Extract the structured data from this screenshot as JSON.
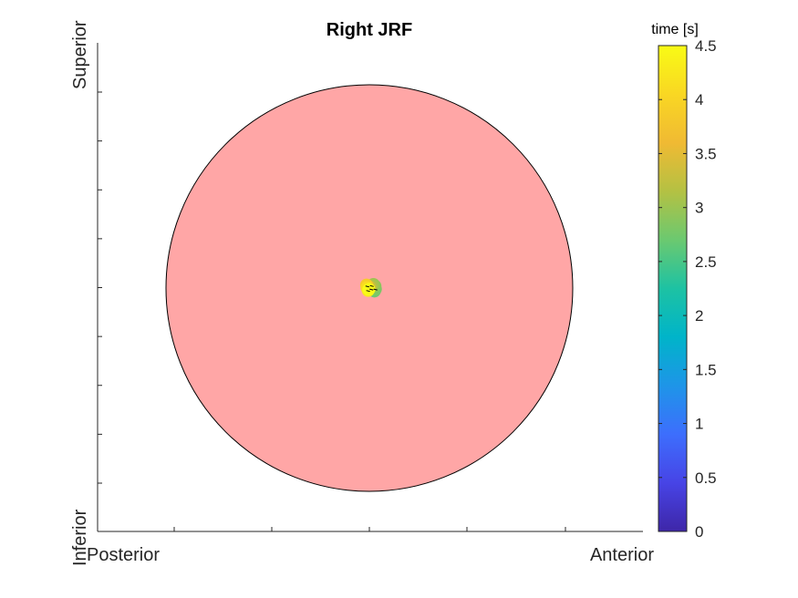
{
  "chart_data": {
    "type": "scatter",
    "title": "Right JRF",
    "x_axis": {
      "left_label": "Posterior",
      "right_label": "Anterior",
      "tick_count": 5
    },
    "y_axis": {
      "top_label": "Superior",
      "bottom_label": "Inferior",
      "tick_count": 9
    },
    "background_disk": {
      "fill": "#FFA6A6",
      "stroke": "#000000"
    },
    "colorbar": {
      "label": "time [s]",
      "range": [
        0,
        4.5
      ],
      "ticks": [
        "0",
        "0.5",
        "1",
        "1.5",
        "2",
        "2.5",
        "3",
        "3.5",
        "4",
        "4.5"
      ],
      "colormap": [
        "#3E26A8",
        "#4744E6",
        "#3D6EFD",
        "#1E95E8",
        "#00B4C9",
        "#1DC2A3",
        "#6BC970",
        "#B4C143",
        "#F0BA33",
        "#F9D723",
        "#F9FB15"
      ]
    },
    "points": [
      {
        "t": 2.4,
        "x": 0.01,
        "y": -0.005
      },
      {
        "t": 2.6,
        "x": 0.016,
        "y": -0.01
      },
      {
        "t": 2.7,
        "x": 0.025,
        "y": -0.015
      },
      {
        "t": 2.8,
        "x": 0.03,
        "y": -0.005
      },
      {
        "t": 2.9,
        "x": 0.028,
        "y": 0.01
      },
      {
        "t": 3.0,
        "x": 0.02,
        "y": 0.018
      },
      {
        "t": 3.1,
        "x": 0.012,
        "y": 0.012
      },
      {
        "t": 3.3,
        "x": 0.002,
        "y": 0.006
      },
      {
        "t": 3.5,
        "x": -0.006,
        "y": 0.002
      },
      {
        "t": 3.7,
        "x": -0.01,
        "y": 0.01
      },
      {
        "t": 3.9,
        "x": -0.014,
        "y": 0.015
      },
      {
        "t": 4.1,
        "x": -0.012,
        "y": 0.002
      },
      {
        "t": 4.3,
        "x": -0.006,
        "y": -0.012
      },
      {
        "t": 4.5,
        "x": -0.002,
        "y": -0.006
      }
    ]
  }
}
